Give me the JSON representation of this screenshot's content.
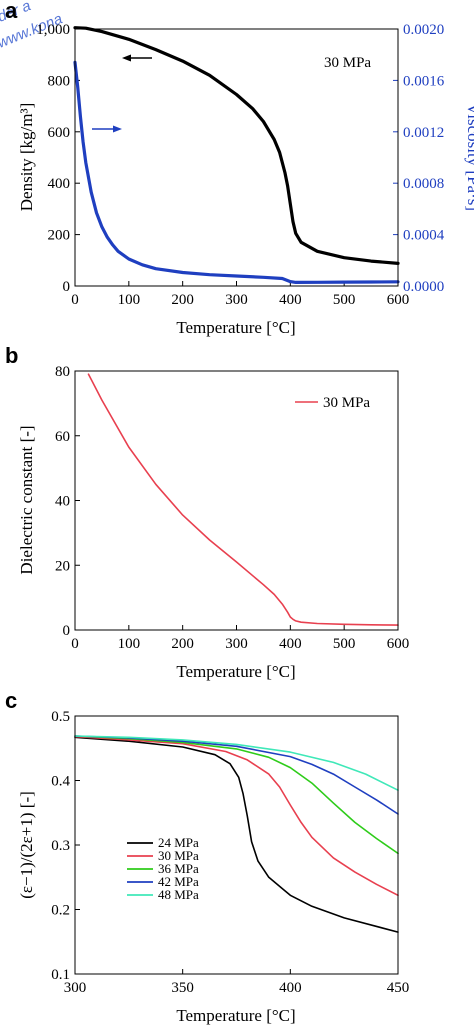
{
  "watermark": [
    "der a",
    "www.kona"
  ],
  "chart_data": [
    {
      "panel": "a",
      "type": "line",
      "annotation": "30 MPa",
      "xlabel": "Temperature [°C]",
      "ylabel": "Density [kg/m³]",
      "ylabel_right": "Viscosity [Pa·s]",
      "xlim": [
        0,
        600
      ],
      "ylim": [
        0,
        1000
      ],
      "ylim_right": [
        0,
        0.002
      ],
      "xticks": [
        0,
        100,
        200,
        300,
        400,
        500,
        600
      ],
      "yticks": [
        0,
        200,
        400,
        600,
        800,
        1000
      ],
      "ytick_labels": [
        "0",
        "200",
        "400",
        "600",
        "800",
        "1,000"
      ],
      "yticks_right": [
        0,
        0.0004,
        0.0008,
        0.0012,
        0.0016,
        0.002
      ],
      "ytick_labels_right": [
        "0.0000",
        "0.0004",
        "0.0008",
        "0.0012",
        "0.0016",
        "0.0020"
      ],
      "left_color": "#000000",
      "right_color": "#1f3fc0",
      "arrows": [
        {
          "direction": "left",
          "color": "#000000",
          "x": 120,
          "y": 887
        },
        {
          "direction": "right",
          "color": "#1f3fc0",
          "x": 55,
          "y": 605
        }
      ],
      "series": [
        {
          "axis": "left",
          "color": "#000000",
          "x": [
            0,
            20,
            50,
            100,
            150,
            200,
            250,
            300,
            330,
            350,
            370,
            380,
            390,
            395,
            400,
            405,
            410,
            420,
            450,
            500,
            550,
            600
          ],
          "y": [
            1005,
            1003,
            990,
            960,
            920,
            875,
            820,
            745,
            690,
            640,
            570,
            520,
            440,
            390,
            320,
            250,
            205,
            170,
            135,
            110,
            97,
            88
          ]
        },
        {
          "axis": "right",
          "color": "#1f3fc0",
          "x": [
            0,
            5,
            10,
            15,
            20,
            30,
            40,
            50,
            60,
            70,
            80,
            100,
            125,
            150,
            200,
            250,
            300,
            350,
            385,
            400,
            410,
            450,
            500,
            550,
            600
          ],
          "y": [
            0.00174,
            0.00155,
            0.00132,
            0.00112,
            0.00096,
            0.00073,
            0.00057,
            0.00046,
            0.00038,
            0.00032,
            0.00027,
            0.00021,
            0.000165,
            0.000135,
            0.000105,
            8.8e-05,
            7.8e-05,
            6.8e-05,
            5.8e-05,
            3.4e-05,
            2.8e-05,
            2.9e-05,
            3e-05,
            3.1e-05,
            3.3e-05
          ]
        }
      ]
    },
    {
      "panel": "b",
      "type": "line",
      "xlabel": "Temperature [°C]",
      "ylabel": "Dielectric constant [-]",
      "xlim": [
        0,
        600
      ],
      "ylim": [
        0,
        80
      ],
      "xticks": [
        0,
        100,
        200,
        300,
        400,
        500,
        600
      ],
      "yticks": [
        0,
        20,
        40,
        60,
        80
      ],
      "legend_position": "top-right",
      "series": [
        {
          "name": "30 MPa",
          "color": "#e8404f",
          "x": [
            25,
            50,
            100,
            150,
            200,
            250,
            300,
            350,
            370,
            385,
            395,
            400,
            405,
            410,
            420,
            450,
            500,
            550,
            600
          ],
          "y": [
            79,
            71,
            56.5,
            45,
            35.5,
            27.8,
            21,
            14,
            11,
            8,
            5.5,
            4,
            3.3,
            2.8,
            2.4,
            2.0,
            1.75,
            1.6,
            1.5
          ]
        }
      ]
    },
    {
      "panel": "c",
      "type": "line",
      "xlabel": "Temperature [°C]",
      "ylabel": "(ε−1)/(2ε+1) [-]",
      "xlim": [
        300,
        450
      ],
      "ylim": [
        0.1,
        0.5
      ],
      "xticks": [
        300,
        350,
        400,
        450
      ],
      "yticks": [
        0.1,
        0.2,
        0.3,
        0.4,
        0.5
      ],
      "legend_position": "bottom-left",
      "series": [
        {
          "name": "24 MPa",
          "color": "#000000",
          "x": [
            300,
            325,
            350,
            365,
            372,
            376,
            378,
            380,
            382,
            385,
            390,
            400,
            410,
            425,
            450
          ],
          "y": [
            0.467,
            0.461,
            0.452,
            0.44,
            0.426,
            0.405,
            0.38,
            0.345,
            0.305,
            0.275,
            0.25,
            0.222,
            0.205,
            0.187,
            0.165
          ]
        },
        {
          "name": "30 MPa",
          "color": "#e8404f",
          "x": [
            300,
            325,
            350,
            370,
            380,
            390,
            395,
            400,
            405,
            410,
            420,
            430,
            440,
            450
          ],
          "y": [
            0.468,
            0.463,
            0.457,
            0.445,
            0.432,
            0.41,
            0.39,
            0.362,
            0.335,
            0.312,
            0.28,
            0.258,
            0.239,
            0.222
          ]
        },
        {
          "name": "36 MPa",
          "color": "#2ecc1a",
          "x": [
            300,
            325,
            350,
            375,
            390,
            400,
            410,
            420,
            430,
            440,
            450
          ],
          "y": [
            0.469,
            0.465,
            0.459,
            0.449,
            0.436,
            0.42,
            0.396,
            0.365,
            0.335,
            0.31,
            0.287
          ]
        },
        {
          "name": "42 MPa",
          "color": "#1f3fc0",
          "x": [
            300,
            325,
            350,
            375,
            400,
            410,
            420,
            430,
            440,
            450
          ],
          "y": [
            0.469,
            0.466,
            0.461,
            0.453,
            0.437,
            0.425,
            0.41,
            0.39,
            0.37,
            0.348
          ]
        },
        {
          "name": "48 MPa",
          "color": "#3fe8b8",
          "x": [
            300,
            325,
            350,
            375,
            400,
            420,
            435,
            450
          ],
          "y": [
            0.469,
            0.467,
            0.463,
            0.456,
            0.444,
            0.428,
            0.41,
            0.385
          ]
        }
      ]
    }
  ]
}
